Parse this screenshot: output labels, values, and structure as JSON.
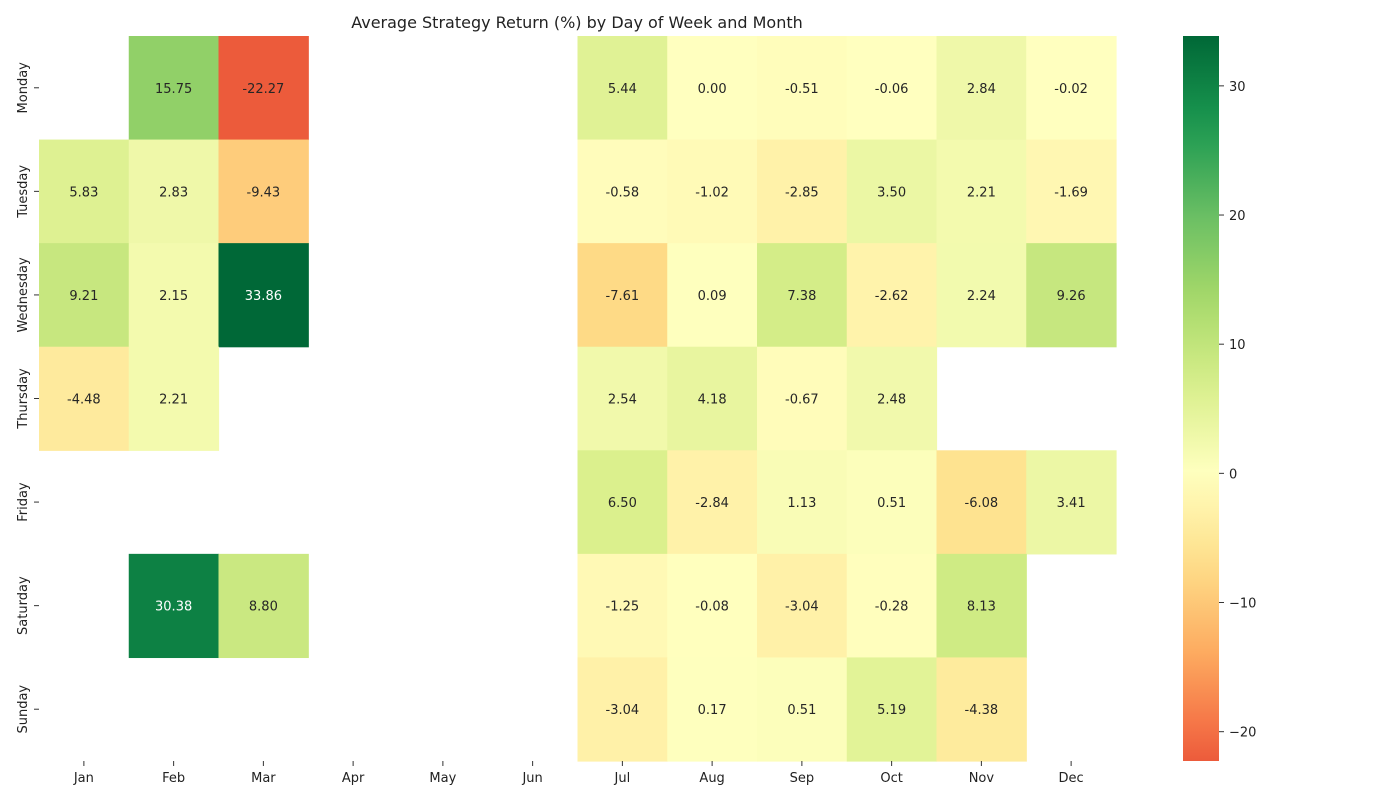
{
  "chart_data": {
    "type": "heatmap",
    "title": "Average Strategy Return (%) by Day of Week and Month",
    "xlabel": "",
    "ylabel": "",
    "columns": [
      "Jan",
      "Feb",
      "Mar",
      "Apr",
      "May",
      "Jun",
      "Jul",
      "Aug",
      "Sep",
      "Oct",
      "Nov",
      "Dec"
    ],
    "rows": [
      "Monday",
      "Tuesday",
      "Wednesday",
      "Thursday",
      "Friday",
      "Saturday",
      "Sunday"
    ],
    "values": [
      [
        null,
        15.75,
        -22.27,
        null,
        null,
        null,
        5.44,
        0.0,
        -0.51,
        -0.06,
        2.84,
        -0.02
      ],
      [
        5.83,
        2.83,
        -9.43,
        null,
        null,
        null,
        -0.58,
        -1.02,
        -2.85,
        3.5,
        2.21,
        -1.69
      ],
      [
        9.21,
        2.15,
        33.86,
        null,
        null,
        null,
        -7.61,
        0.09,
        7.38,
        -2.62,
        2.24,
        9.26
      ],
      [
        -4.48,
        2.21,
        null,
        null,
        null,
        null,
        2.54,
        4.18,
        -0.67,
        2.48,
        null,
        null
      ],
      [
        null,
        null,
        null,
        null,
        null,
        null,
        6.5,
        -2.84,
        1.13,
        0.51,
        -6.08,
        3.41
      ],
      [
        null,
        30.38,
        8.8,
        null,
        null,
        null,
        -1.25,
        -0.08,
        -3.04,
        -0.28,
        8.13,
        null
      ],
      [
        null,
        null,
        null,
        null,
        null,
        null,
        -3.04,
        0.17,
        0.51,
        5.19,
        -4.38,
        null
      ]
    ],
    "colormap": "RdYlGn",
    "center": 0,
    "value_range": [
      -22.27,
      33.86
    ],
    "colorbar": {
      "ticks": [
        30,
        20,
        10,
        0,
        -10,
        -20
      ],
      "tick_labels": [
        "30",
        "20",
        "10",
        "0",
        "−10",
        "−20"
      ]
    },
    "annotation_format": "2 decimals"
  }
}
